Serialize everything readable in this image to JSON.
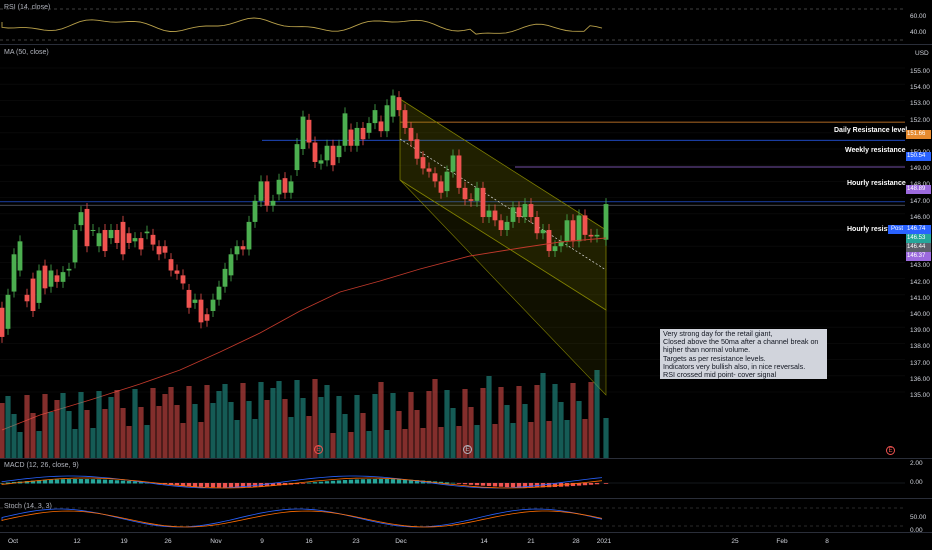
{
  "panes": {
    "rsi": {
      "label": "RSI (14, close)",
      "ticks": [
        "60.00",
        "40.00"
      ]
    },
    "main": {
      "label": "MA (50, close)",
      "currency": "USD",
      "ticks": [
        "155.00",
        "154.00",
        "153.00",
        "152.00",
        "151.00",
        "150.00",
        "149.00",
        "148.00",
        "147.00",
        "146.00",
        "145.00",
        "144.00",
        "143.00",
        "142.00",
        "141.00",
        "140.00",
        "139.00",
        "138.00",
        "137.00",
        "136.00",
        "135.00"
      ]
    },
    "macd": {
      "label": "MACD (12, 26, close, 9)",
      "ticks": [
        "2.00",
        "0.00"
      ]
    },
    "stoch": {
      "label": "Stoch (14, 3, 3)",
      "ticks": [
        "50.00",
        "0.00"
      ]
    }
  },
  "levels": [
    {
      "label": "Daily Resistance level",
      "price_tag": "151.66",
      "color": "#e68a2e"
    },
    {
      "label": "Weekly resistance",
      "price_tag": "150.54",
      "color": "#2962ff"
    },
    {
      "label": "Hourly resistance",
      "price_tag": "148.89",
      "color": "#9c6ade"
    },
    {
      "label": "Hourly resistance",
      "price_tag": "146.53",
      "color": "#5d606b"
    }
  ],
  "price_tags": [
    {
      "text": "146.74",
      "sub": "Post",
      "color": "#2962ff"
    },
    {
      "text": "146.53",
      "color": "#26a69a"
    },
    {
      "text": "146.44",
      "color": "#5d606b"
    },
    {
      "text": "146.37",
      "color": "#9c6ade"
    }
  ],
  "x_axis": [
    "Oct",
    "12",
    "19",
    "26",
    "Nov",
    "9",
    "16",
    "23",
    "Dec",
    "14",
    "21",
    "28",
    "2021",
    "25",
    "Feb",
    "8"
  ],
  "note": {
    "lines": [
      "Very strong day for the retail giant,",
      "Closed above the 50ma after a channel break on",
      "higher than normal volume.",
      "Targets as per resistance levels.",
      "Indicators very bullish also, in nice reversals.",
      "RSI crossed mid point- cover signal"
    ]
  },
  "event_markers": [
    "E",
    "E",
    "E"
  ],
  "colors": {
    "up": "#26a69a",
    "down": "#ef5350",
    "up_candle": "#4caf50",
    "ma": "#c0392b",
    "channel": "#808000"
  }
}
